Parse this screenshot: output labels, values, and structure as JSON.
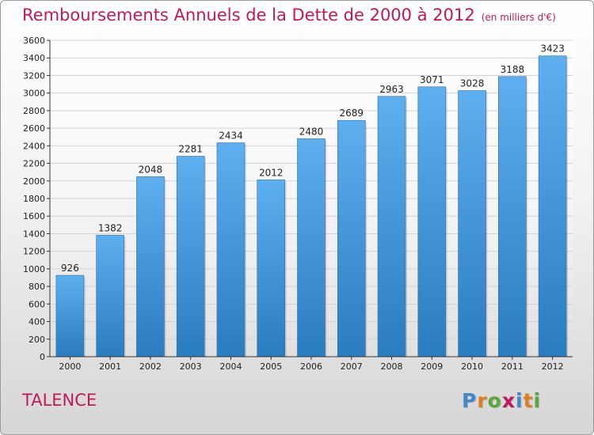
{
  "title": "Remboursements Annuels de la Dette de 2000 à 2012",
  "unit": "(en milliers d'€)",
  "commune": "TALENCE",
  "logo_text": "Proxiti",
  "colors": {
    "title": "#c2185b",
    "bar_top": "#5eaff0",
    "bar_bottom": "#2a7cc0",
    "grid": "#d3d3d3",
    "axis": "#333333"
  },
  "chart_data": {
    "type": "bar",
    "categories": [
      "2000",
      "2001",
      "2002",
      "2003",
      "2004",
      "2005",
      "2006",
      "2007",
      "2008",
      "2009",
      "2010",
      "2011",
      "2012"
    ],
    "values": [
      926,
      1382,
      2048,
      2281,
      2434,
      2012,
      2480,
      2689,
      2963,
      3071,
      3028,
      3188,
      3423
    ],
    "ylim": [
      0,
      3600
    ],
    "yticks": [
      0,
      200,
      400,
      600,
      800,
      1000,
      1200,
      1400,
      1600,
      1800,
      2000,
      2200,
      2400,
      2600,
      2800,
      3000,
      3200,
      3400,
      3600
    ],
    "grid": true,
    "title": "Remboursements Annuels de la Dette de 2000 à 2012",
    "xlabel": "",
    "ylabel": ""
  }
}
